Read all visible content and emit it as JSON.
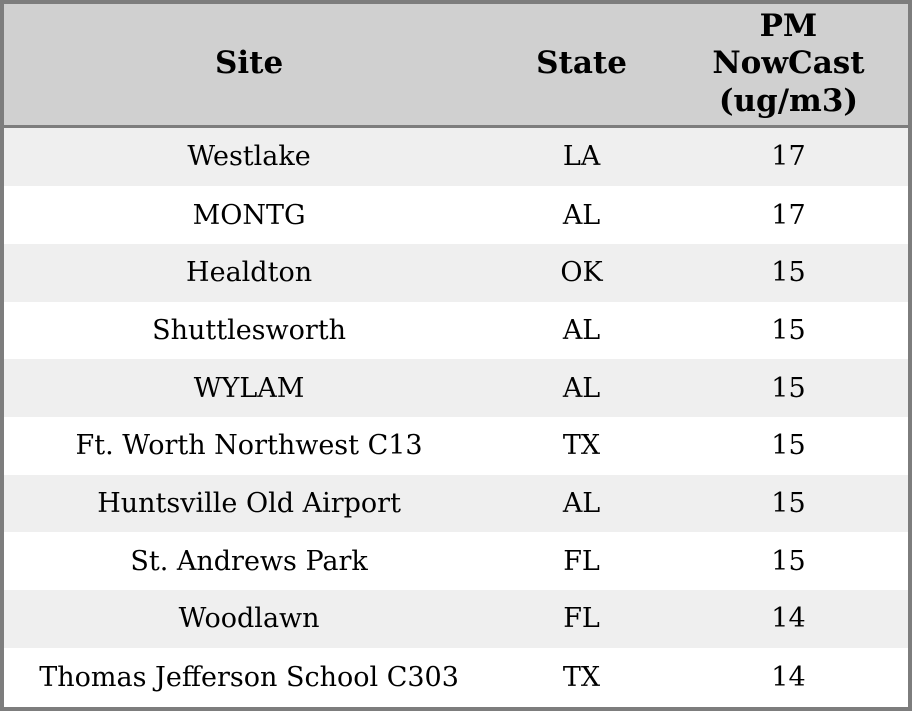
{
  "colors": {
    "border": "#7d7d7d",
    "header_bg": "#d0d0d0",
    "row_bg": "#ffffff",
    "row_alt_bg": "#efefef",
    "text": "#000000"
  },
  "table": {
    "header": {
      "site": "Site",
      "state": "State",
      "pm": "PM NowCast (ug/m3)"
    }
  },
  "chart_data": {
    "type": "table",
    "columns": [
      "Site",
      "State",
      "PM NowCast (ug/m3)"
    ],
    "rows": [
      [
        "Westlake",
        "LA",
        17
      ],
      [
        "MONTG",
        "AL",
        17
      ],
      [
        "Healdton",
        "OK",
        15
      ],
      [
        "Shuttlesworth",
        "AL",
        15
      ],
      [
        "WYLAM",
        "AL",
        15
      ],
      [
        "Ft. Worth Northwest C13",
        "TX",
        15
      ],
      [
        "Huntsville Old Airport",
        "AL",
        15
      ],
      [
        "St. Andrews Park",
        "FL",
        15
      ],
      [
        "Woodlawn",
        "FL",
        14
      ],
      [
        "Thomas Jefferson School C303",
        "TX",
        14
      ]
    ]
  }
}
